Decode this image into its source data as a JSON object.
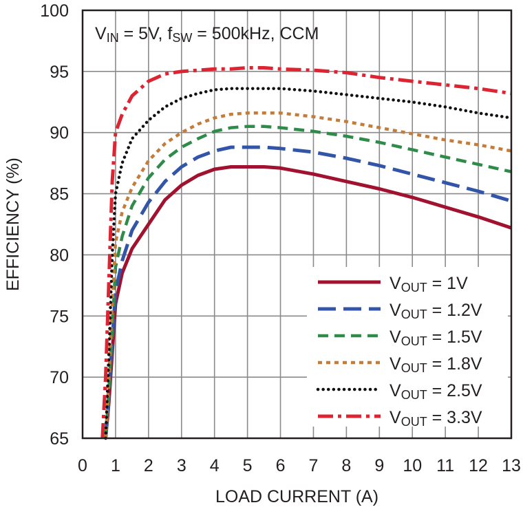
{
  "chart_data": {
    "type": "line",
    "annotation": {
      "parts": [
        {
          "t": "V"
        },
        {
          "t": "IN",
          "sub": true
        },
        {
          "t": " = 5V, f"
        },
        {
          "t": "SW",
          "sub": true
        },
        {
          "t": " = 500kHz, CCM"
        }
      ]
    },
    "xlabel": "LOAD CURRENT (A)",
    "ylabel": "EFFICIENCY (%)",
    "xlim": [
      0,
      13
    ],
    "ylim": [
      65,
      100
    ],
    "x_ticks": [
      "0",
      "1",
      "2",
      "3",
      "4",
      "5",
      "6",
      "7",
      "8",
      "9",
      "10",
      "11",
      "12",
      "13"
    ],
    "y_ticks": [
      "65",
      "70",
      "75",
      "80",
      "85",
      "90",
      "95",
      "100"
    ],
    "grid": true,
    "legend_position": "bottom-right",
    "series": [
      {
        "name_parts": [
          {
            "t": "V"
          },
          {
            "t": "OUT",
            "sub": true
          },
          {
            "t": " = 1V"
          }
        ],
        "color": "#a0122f",
        "dash": "solid",
        "points": [
          [
            0.7,
            65
          ],
          [
            0.8,
            68
          ],
          [
            0.9,
            72
          ],
          [
            1.0,
            76
          ],
          [
            1.2,
            78.5
          ],
          [
            1.5,
            80.5
          ],
          [
            2.0,
            82.5
          ],
          [
            2.5,
            84.5
          ],
          [
            3.0,
            85.7
          ],
          [
            3.5,
            86.5
          ],
          [
            4.0,
            87.0
          ],
          [
            4.5,
            87.2
          ],
          [
            5.0,
            87.2
          ],
          [
            5.5,
            87.2
          ],
          [
            6.0,
            87.1
          ],
          [
            7.0,
            86.6
          ],
          [
            8.0,
            86.0
          ],
          [
            9.0,
            85.4
          ],
          [
            10.0,
            84.7
          ],
          [
            11.0,
            83.9
          ],
          [
            12.0,
            83.1
          ],
          [
            13.0,
            82.2
          ]
        ]
      },
      {
        "name_parts": [
          {
            "t": "V"
          },
          {
            "t": "OUT",
            "sub": true
          },
          {
            "t": " = 1.2V"
          }
        ],
        "color": "#3355a8",
        "dash": "longdash",
        "points": [
          [
            0.7,
            65
          ],
          [
            0.8,
            68.5
          ],
          [
            0.9,
            73
          ],
          [
            1.0,
            77
          ],
          [
            1.2,
            79.5
          ],
          [
            1.5,
            82
          ],
          [
            2.0,
            84.3
          ],
          [
            2.5,
            86
          ],
          [
            3.0,
            87.2
          ],
          [
            3.5,
            88.0
          ],
          [
            4.0,
            88.5
          ],
          [
            4.5,
            88.8
          ],
          [
            5.0,
            88.8
          ],
          [
            5.5,
            88.8
          ],
          [
            6.0,
            88.7
          ],
          [
            7.0,
            88.4
          ],
          [
            8.0,
            87.9
          ],
          [
            9.0,
            87.3
          ],
          [
            10.0,
            86.6
          ],
          [
            11.0,
            85.9
          ],
          [
            12.0,
            85.2
          ],
          [
            13.0,
            84.4
          ]
        ]
      },
      {
        "name_parts": [
          {
            "t": "V"
          },
          {
            "t": "OUT",
            "sub": true
          },
          {
            "t": " = 1.5V"
          }
        ],
        "color": "#2e8b49",
        "dash": "dash",
        "points": [
          [
            0.7,
            65
          ],
          [
            0.8,
            69
          ],
          [
            0.9,
            74
          ],
          [
            1.0,
            79
          ],
          [
            1.2,
            81.5
          ],
          [
            1.5,
            84
          ],
          [
            2.0,
            86.3
          ],
          [
            2.5,
            87.8
          ],
          [
            3.0,
            88.8
          ],
          [
            3.5,
            89.5
          ],
          [
            4.0,
            90.1
          ],
          [
            4.5,
            90.4
          ],
          [
            5.0,
            90.5
          ],
          [
            5.5,
            90.5
          ],
          [
            6.0,
            90.4
          ],
          [
            7.0,
            90.1
          ],
          [
            8.0,
            89.7
          ],
          [
            9.0,
            89.2
          ],
          [
            10.0,
            88.6
          ],
          [
            11.0,
            88.0
          ],
          [
            12.0,
            87.4
          ],
          [
            13.0,
            86.8
          ]
        ]
      },
      {
        "name_parts": [
          {
            "t": "V"
          },
          {
            "t": "OUT",
            "sub": true
          },
          {
            "t": " = 1.8V"
          }
        ],
        "color": "#c47c3a",
        "dash": "shortdash",
        "points": [
          [
            0.7,
            65
          ],
          [
            0.8,
            70
          ],
          [
            0.9,
            76
          ],
          [
            1.0,
            81
          ],
          [
            1.2,
            83.5
          ],
          [
            1.5,
            85.5
          ],
          [
            2.0,
            87.7
          ],
          [
            2.5,
            89.1
          ],
          [
            3.0,
            90.0
          ],
          [
            3.5,
            90.7
          ],
          [
            4.0,
            91.2
          ],
          [
            4.5,
            91.5
          ],
          [
            5.0,
            91.6
          ],
          [
            5.5,
            91.6
          ],
          [
            6.0,
            91.6
          ],
          [
            7.0,
            91.3
          ],
          [
            8.0,
            90.9
          ],
          [
            9.0,
            90.4
          ],
          [
            10.0,
            89.9
          ],
          [
            11.0,
            89.4
          ],
          [
            12.0,
            89.0
          ],
          [
            13.0,
            88.5
          ]
        ]
      },
      {
        "name_parts": [
          {
            "t": "V"
          },
          {
            "t": "OUT",
            "sub": true
          },
          {
            "t": " = 2.5V"
          }
        ],
        "color": "#111111",
        "dash": "dot",
        "points": [
          [
            0.7,
            65
          ],
          [
            0.8,
            72
          ],
          [
            0.9,
            80
          ],
          [
            1.0,
            85
          ],
          [
            1.2,
            87.5
          ],
          [
            1.5,
            89.5
          ],
          [
            2.0,
            91.0
          ],
          [
            2.5,
            92.1
          ],
          [
            3.0,
            92.8
          ],
          [
            3.5,
            93.2
          ],
          [
            4.0,
            93.5
          ],
          [
            4.5,
            93.6
          ],
          [
            5.0,
            93.6
          ],
          [
            5.5,
            93.6
          ],
          [
            6.0,
            93.6
          ],
          [
            7.0,
            93.4
          ],
          [
            8.0,
            93.1
          ],
          [
            9.0,
            92.8
          ],
          [
            10.0,
            92.5
          ],
          [
            11.0,
            92.1
          ],
          [
            12.0,
            91.6
          ],
          [
            13.0,
            91.2
          ]
        ]
      },
      {
        "name_parts": [
          {
            "t": "V"
          },
          {
            "t": "OUT",
            "sub": true
          },
          {
            "t": " = 3.3V"
          }
        ],
        "color": "#dc2433",
        "dash": "dashdot",
        "points": [
          [
            0.6,
            65
          ],
          [
            0.7,
            70
          ],
          [
            0.8,
            78
          ],
          [
            0.9,
            86
          ],
          [
            1.0,
            90
          ],
          [
            1.2,
            91.5
          ],
          [
            1.5,
            93.0
          ],
          [
            2.0,
            94.2
          ],
          [
            2.5,
            94.8
          ],
          [
            3.0,
            95.0
          ],
          [
            3.5,
            95.1
          ],
          [
            4.0,
            95.2
          ],
          [
            4.5,
            95.2
          ],
          [
            5.0,
            95.3
          ],
          [
            5.5,
            95.3
          ],
          [
            6.0,
            95.2
          ],
          [
            7.0,
            95.1
          ],
          [
            8.0,
            94.9
          ],
          [
            9.0,
            94.5
          ],
          [
            10.0,
            94.2
          ],
          [
            11.0,
            93.9
          ],
          [
            12.0,
            93.6
          ],
          [
            13.0,
            93.2
          ]
        ]
      }
    ]
  }
}
